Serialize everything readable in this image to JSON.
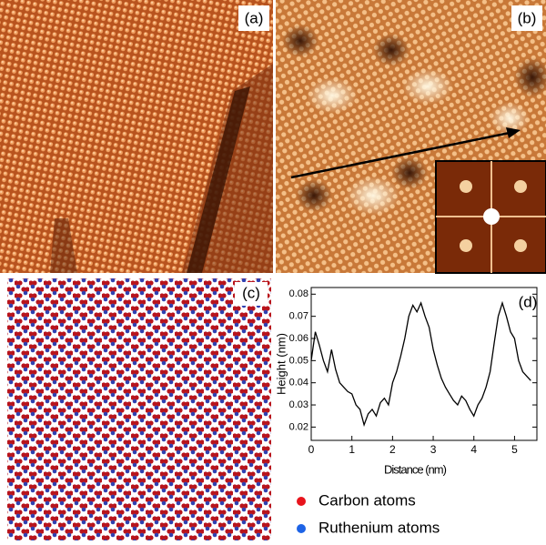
{
  "panels": [
    {
      "label": "(a)"
    },
    {
      "label": "(b)"
    },
    {
      "label": "(c)"
    },
    {
      "label": "(d)"
    }
  ],
  "legend": [
    {
      "label": "Carbon atoms",
      "color": "#e8141c"
    },
    {
      "label": "Ruthenium atoms",
      "color": "#1d63e6"
    }
  ],
  "chart_data": {
    "type": "line",
    "xlabel": "Distance (nm)",
    "ylabel": "Height (nm)",
    "color": "#000000",
    "x": [
      0,
      0.1,
      0.2,
      0.3,
      0.4,
      0.5,
      0.6,
      0.7,
      0.8,
      0.9,
      1.0,
      1.1,
      1.2,
      1.3,
      1.4,
      1.5,
      1.6,
      1.7,
      1.8,
      1.9,
      2.0,
      2.1,
      2.2,
      2.3,
      2.4,
      2.5,
      2.6,
      2.7,
      2.8,
      2.9,
      3.0,
      3.1,
      3.2,
      3.3,
      3.4,
      3.5,
      3.6,
      3.7,
      3.8,
      3.9,
      4.0,
      4.1,
      4.2,
      4.3,
      4.4,
      4.5,
      4.6,
      4.7,
      4.8,
      4.9,
      5.0,
      5.1,
      5.2,
      5.3,
      5.4
    ],
    "values": [
      0.05,
      0.063,
      0.057,
      0.05,
      0.045,
      0.055,
      0.046,
      0.04,
      0.038,
      0.036,
      0.035,
      0.03,
      0.028,
      0.021,
      0.026,
      0.028,
      0.025,
      0.031,
      0.033,
      0.03,
      0.04,
      0.045,
      0.052,
      0.06,
      0.07,
      0.075,
      0.072,
      0.076,
      0.07,
      0.065,
      0.055,
      0.048,
      0.042,
      0.038,
      0.035,
      0.032,
      0.03,
      0.034,
      0.032,
      0.028,
      0.025,
      0.03,
      0.033,
      0.038,
      0.045,
      0.058,
      0.07,
      0.076,
      0.07,
      0.063,
      0.06,
      0.05,
      0.045,
      0.043,
      0.041
    ],
    "xlim": [
      0,
      5.55
    ],
    "ylim": [
      0.014,
      0.083
    ],
    "xticks": [
      0,
      1,
      2,
      3,
      4,
      5
    ],
    "yticks": [
      0.02,
      0.03,
      0.04,
      0.05,
      0.06,
      0.07,
      0.08
    ]
  }
}
